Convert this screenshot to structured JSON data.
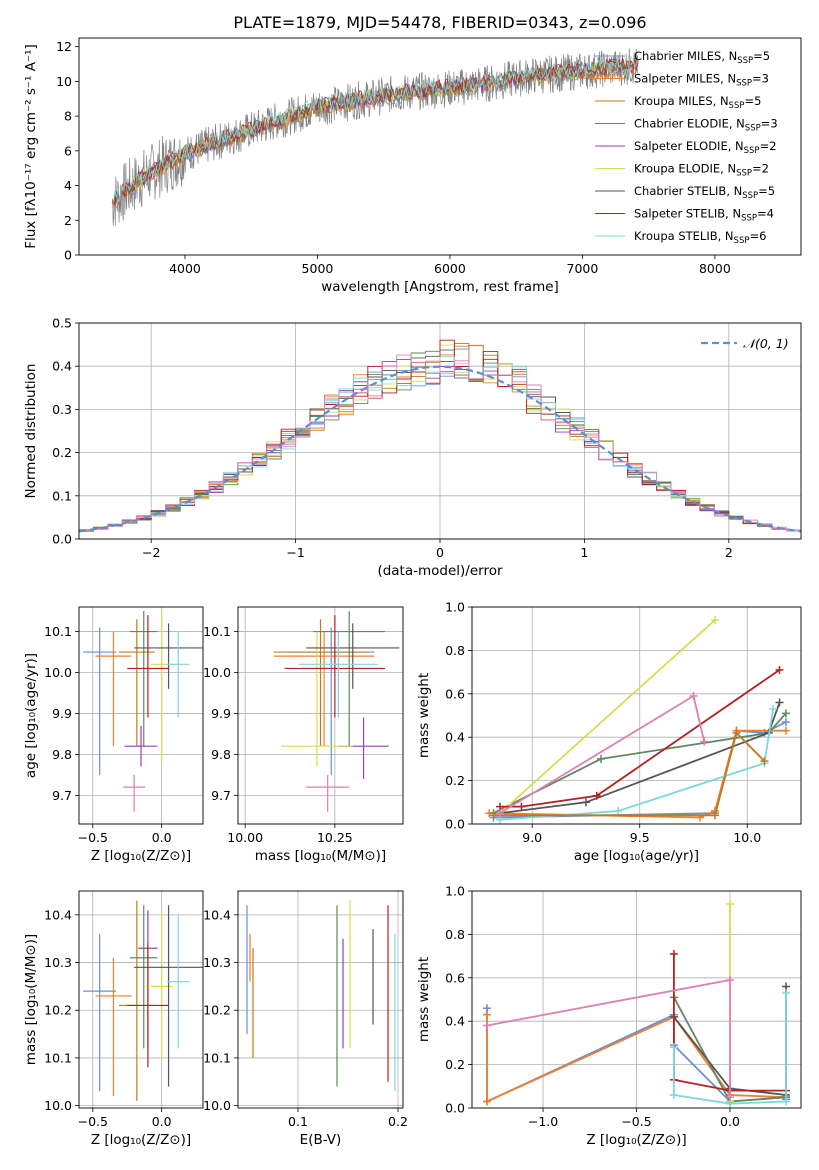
{
  "figure_title": "PLATE=1879, MJD=54478, FIBERID=0343, z=0.096",
  "colors": [
    "#6a8fd8",
    "#ee7f2d",
    "#c07a1f",
    "#5f8a5f",
    "#9b3fb5",
    "#d8dc52",
    "#555555",
    "#b22222",
    "#7fd7da"
  ],
  "chart_data": [
    {
      "id": "spectrum",
      "type": "line",
      "title": "PLATE=1879, MJD=54478, FIBERID=0343, z=0.096",
      "xlabel": "wavelength [Angstrom, rest frame]",
      "ylabel": "Flux [fλ10⁻¹⁷ erg cm⁻² s⁻¹ A⁻¹]",
      "xlim": [
        3200,
        8650
      ],
      "ylim": [
        0,
        12.5
      ],
      "xticks": [
        4000,
        5000,
        6000,
        7000,
        8000
      ],
      "yticks": [
        0,
        2,
        4,
        6,
        8,
        10,
        12
      ],
      "grid": false,
      "legend_position": "upper-right",
      "data_color": "#808080",
      "data_anchors": {
        "x": [
          3450,
          3600,
          3800,
          4000,
          4200,
          4500,
          4800,
          5000,
          5300,
          5600,
          6000,
          6300,
          6600,
          7000,
          7400
        ],
        "y": [
          3.0,
          4.0,
          5.0,
          5.8,
          6.4,
          7.2,
          8.0,
          8.5,
          8.9,
          9.3,
          9.6,
          9.9,
          10.3,
          10.6,
          10.9
        ]
      },
      "series": [
        {
          "name": "Chabrier MILES, N",
          "sub": "SSP",
          "suffix": "=5"
        },
        {
          "name": "Salpeter MILES, N",
          "sub": "SSP",
          "suffix": "=3"
        },
        {
          "name": "Kroupa MILES, N",
          "sub": "SSP",
          "suffix": "=5"
        },
        {
          "name": "Chabrier ELODIE, N",
          "sub": "SSP",
          "suffix": "=3"
        },
        {
          "name": "Salpeter ELODIE, N",
          "sub": "SSP",
          "suffix": "=2"
        },
        {
          "name": "Kroupa ELODIE, N",
          "sub": "SSP",
          "suffix": "=2"
        },
        {
          "name": "Chabrier STELIB, N",
          "sub": "SSP",
          "suffix": "=5"
        },
        {
          "name": "Salpeter STELIB, N",
          "sub": "SSP",
          "suffix": "=4"
        },
        {
          "name": "Kroupa STELIB, N",
          "sub": "SSP",
          "suffix": "=6"
        }
      ]
    },
    {
      "id": "residuals",
      "type": "line",
      "xlabel": "(data-model)/error",
      "ylabel": "Normed distribution",
      "xlim": [
        -2.5,
        2.5
      ],
      "ylim": [
        0,
        0.5
      ],
      "xticks": [
        -2,
        -1,
        0,
        1,
        2
      ],
      "xtick_labels": [
        "−2",
        "−1",
        "0",
        "1",
        "2"
      ],
      "yticks": [
        0.0,
        0.1,
        0.2,
        0.3,
        0.4,
        0.5
      ],
      "ytick_labels": [
        "0.0",
        "0.1",
        "0.2",
        "0.3",
        "0.4",
        "0.5"
      ],
      "grid": true,
      "legend_position": "upper-right",
      "gaussian_label": "𝒩(0, 1)",
      "gaussian_color": "#5a8fd0",
      "bin_width": 0.1
    },
    {
      "id": "age_vs_Z",
      "type": "scatter",
      "xlabel": "Z [log₁₀(Z/Z⊙)]",
      "ylabel": "age  [log₁₀(age/yr)]",
      "xlim": [
        -0.6,
        0.3
      ],
      "ylim": [
        9.63,
        10.16
      ],
      "xticks": [
        -0.5,
        0.0
      ],
      "xtick_labels": [
        "−0.5",
        "0.0"
      ],
      "yticks": [
        9.7,
        9.8,
        9.9,
        10.0,
        10.1
      ],
      "ytick_labels": [
        "9.7",
        "9.8",
        "9.9",
        "10.0",
        "10.1"
      ],
      "grid": true,
      "points": [
        {
          "x": -0.45,
          "y": 10.05,
          "xerr": 0.12,
          "yerr": [
            0.3,
            0.06
          ]
        },
        {
          "x": -0.35,
          "y": 10.04,
          "xerr": 0.13,
          "yerr": [
            0.22,
            0.06
          ]
        },
        {
          "x": -0.18,
          "y": 10.05,
          "xerr": 0.13,
          "yerr": [
            0.23,
            0.08
          ]
        },
        {
          "x": -0.13,
          "y": 10.1,
          "xerr": 0.1,
          "yerr": [
            0.28,
            0.05
          ]
        },
        {
          "x": -0.15,
          "y": 9.82,
          "xerr": 0.12,
          "yerr": [
            0.05,
            0.05
          ]
        },
        {
          "x": 0.0,
          "y": 10.02,
          "xerr": 0.08,
          "yerr": [
            0.24,
            0.13
          ]
        },
        {
          "x": 0.05,
          "y": 10.06,
          "xerr": 0.25,
          "yerr": [
            0.1,
            0.06
          ]
        },
        {
          "x": -0.1,
          "y": 10.01,
          "xerr": 0.15,
          "yerr": [
            0.12,
            0.13
          ]
        },
        {
          "x": 0.12,
          "y": 10.02,
          "xerr": 0.08,
          "yerr": [
            0.13,
            0.08
          ]
        },
        {
          "x": -0.2,
          "y": 9.72,
          "xerr": 0.08,
          "yerr": [
            0.06,
            0.03
          ]
        }
      ]
    },
    {
      "id": "age_vs_mass",
      "type": "scatter",
      "xlabel": "mass [log₁₀(M/M⊙)]",
      "xlim": [
        9.98,
        10.44
      ],
      "ylim": [
        9.63,
        10.16
      ],
      "xticks": [
        10.0,
        10.25
      ],
      "xtick_labels": [
        "10.00",
        "10.25"
      ],
      "yticks": [
        9.7,
        9.8,
        9.9,
        10.0,
        10.1
      ],
      "ytick_labels": [
        "9.7",
        "9.8",
        "9.9",
        "10.0",
        "10.1"
      ],
      "grid": true,
      "points": [
        {
          "x": 10.24,
          "y": 10.05,
          "xerr": 0.12,
          "yerr": [
            0.3,
            0.06
          ]
        },
        {
          "x": 10.22,
          "y": 10.04,
          "xerr": 0.14,
          "yerr": [
            0.22,
            0.06
          ]
        },
        {
          "x": 10.21,
          "y": 10.05,
          "xerr": 0.13,
          "yerr": [
            0.23,
            0.08
          ]
        },
        {
          "x": 10.29,
          "y": 10.1,
          "xerr": 0.1,
          "yerr": [
            0.28,
            0.05
          ]
        },
        {
          "x": 10.33,
          "y": 9.82,
          "xerr": 0.07,
          "yerr": [
            0.08,
            0.07
          ]
        },
        {
          "x": 10.2,
          "y": 9.82,
          "xerr": 0.1,
          "yerr": [
            0.05,
            0.28
          ]
        },
        {
          "x": 10.3,
          "y": 10.06,
          "xerr": 0.13,
          "yerr": [
            0.1,
            0.06
          ]
        },
        {
          "x": 10.25,
          "y": 10.01,
          "xerr": 0.14,
          "yerr": [
            0.12,
            0.13
          ]
        },
        {
          "x": 10.26,
          "y": 10.02,
          "xerr": 0.11,
          "yerr": [
            0.13,
            0.08
          ]
        },
        {
          "x": 10.23,
          "y": 9.72,
          "xerr": 0.06,
          "yerr": [
            0.06,
            0.03
          ]
        }
      ]
    },
    {
      "id": "weight_vs_age",
      "type": "line",
      "xlabel": "age  [log₁₀(age/yr)]",
      "ylabel": "mass weight",
      "xlim": [
        8.72,
        10.25
      ],
      "ylim": [
        0,
        1
      ],
      "xticks": [
        9.0,
        9.5,
        10.0
      ],
      "xtick_labels": [
        "9.0",
        "9.5",
        "10.0"
      ],
      "yticks": [
        0,
        0.2,
        0.4,
        0.6,
        0.8,
        1.0
      ],
      "ytick_labels": [
        "0.0",
        "0.2",
        "0.4",
        "0.6",
        "0.8",
        "1.0"
      ],
      "grid": true,
      "series": [
        {
          "color": 0,
          "x": [
            8.82,
            9.85,
            9.95,
            10.08,
            10.18
          ],
          "y": [
            0.03,
            0.05,
            0.43,
            0.42,
            0.47
          ]
        },
        {
          "color": 1,
          "x": [
            8.8,
            9.78,
            9.85,
            9.95,
            10.18
          ],
          "y": [
            0.05,
            0.03,
            0.06,
            0.43,
            0.43
          ]
        },
        {
          "color": 3,
          "x": [
            8.82,
            9.32,
            10.1,
            10.18
          ],
          "y": [
            0.05,
            0.3,
            0.42,
            0.51
          ]
        },
        {
          "color": 5,
          "x": [
            8.85,
            9.85
          ],
          "y": [
            0.05,
            0.94
          ]
        },
        {
          "color": 6,
          "x": [
            8.85,
            9.25,
            10.1,
            10.15
          ],
          "y": [
            0.05,
            0.1,
            0.42,
            0.56
          ]
        },
        {
          "color": 7,
          "x": [
            8.85,
            8.95,
            9.3,
            10.15
          ],
          "y": [
            0.08,
            0.08,
            0.13,
            0.71
          ]
        },
        {
          "color": 8,
          "x": [
            8.85,
            9.4,
            10.08,
            10.12
          ],
          "y": [
            0.02,
            0.06,
            0.28,
            0.53
          ]
        },
        {
          "color": 2,
          "x": [
            8.82,
            9.85,
            9.95,
            10.08
          ],
          "y": [
            0.04,
            0.04,
            0.42,
            0.29
          ]
        },
        {
          "color": "#e07fb0",
          "x": [
            8.85,
            9.75,
            9.8
          ],
          "y": [
            0.05,
            0.59,
            0.38
          ]
        }
      ]
    },
    {
      "id": "mass_vs_Z",
      "type": "scatter",
      "xlabel": "Z [log₁₀(Z/Z⊙)]",
      "ylabel": "mass [log₁₀(M/M⊙)]",
      "xlim": [
        -0.6,
        0.3
      ],
      "ylim": [
        9.995,
        10.45
      ],
      "xticks": [
        -0.5,
        0.0
      ],
      "xtick_labels": [
        "−0.5",
        "0.0"
      ],
      "yticks": [
        10.0,
        10.1,
        10.2,
        10.3,
        10.4
      ],
      "ytick_labels": [
        "10.0",
        "10.1",
        "10.2",
        "10.3",
        "10.4"
      ],
      "grid": true,
      "points": [
        {
          "x": -0.45,
          "y": 10.24,
          "xerr": 0.12,
          "yerr": [
            0.21,
            0.12
          ]
        },
        {
          "x": -0.35,
          "y": 10.23,
          "xerr": 0.13,
          "yerr": [
            0.21,
            0.08
          ]
        },
        {
          "x": -0.18,
          "y": 10.21,
          "xerr": 0.13,
          "yerr": [
            0.2,
            0.22
          ]
        },
        {
          "x": -0.13,
          "y": 10.31,
          "xerr": 0.1,
          "yerr": [
            0.19,
            0.11
          ]
        },
        {
          "x": -0.1,
          "y": 10.33,
          "xerr": 0.07,
          "yerr": [
            0.21,
            0.08
          ]
        },
        {
          "x": 0.0,
          "y": 10.25,
          "xerr": 0.08,
          "yerr": [
            0.15,
            0.16
          ]
        },
        {
          "x": 0.05,
          "y": 10.29,
          "xerr": 0.25,
          "yerr": [
            0.25,
            0.13
          ]
        },
        {
          "x": -0.1,
          "y": 10.21,
          "xerr": 0.15,
          "yerr": [
            0.13,
            0.13
          ]
        },
        {
          "x": 0.12,
          "y": 10.26,
          "xerr": 0.08,
          "yerr": [
            0.14,
            0.14
          ]
        }
      ]
    },
    {
      "id": "mass_vs_EBV",
      "type": "scatter",
      "xlabel": "E(B-V)",
      "xlim": [
        0.04,
        0.205
      ],
      "ylim": [
        9.995,
        10.45
      ],
      "xticks": [
        0.1,
        0.2
      ],
      "xtick_labels": [
        "0.1",
        "0.2"
      ],
      "yticks": [
        10.0,
        10.1,
        10.2,
        10.3,
        10.4
      ],
      "ytick_labels": [
        "10.0",
        "10.1",
        "10.2",
        "10.3",
        "10.4"
      ],
      "grid": true,
      "points": [
        {
          "x": 0.049,
          "y": 10.27,
          "yerr": [
            0.12,
            0.15
          ]
        },
        {
          "x": 0.052,
          "y": 10.28,
          "yerr": [
            0.02,
            0.08
          ]
        },
        {
          "x": 0.055,
          "y": 10.25,
          "yerr": [
            0.15,
            0.08
          ]
        },
        {
          "x": 0.139,
          "y": 10.25,
          "yerr": [
            0.21,
            0.17
          ]
        },
        {
          "x": 0.145,
          "y": 10.25,
          "yerr": [
            0.13,
            0.1
          ]
        },
        {
          "x": 0.152,
          "y": 10.27,
          "yerr": [
            0.15,
            0.16
          ]
        },
        {
          "x": 0.175,
          "y": 10.27,
          "yerr": [
            0.1,
            0.1
          ]
        },
        {
          "x": 0.19,
          "y": 10.3,
          "yerr": [
            0.25,
            0.12
          ]
        },
        {
          "x": 0.197,
          "y": 10.2,
          "yerr": [
            0.17,
            0.16
          ]
        }
      ]
    },
    {
      "id": "weight_vs_Z",
      "type": "line",
      "xlabel": "Z [log₁₀(Z/Z⊙)]",
      "ylabel": "mass weight",
      "xlim": [
        -1.38,
        0.38
      ],
      "ylim": [
        0,
        1
      ],
      "xticks": [
        -1.0,
        -0.5,
        0.0
      ],
      "xtick_labels": [
        "−1.0",
        "−0.5",
        "0.0"
      ],
      "yticks": [
        0,
        0.2,
        0.4,
        0.6,
        0.8,
        1.0
      ],
      "ytick_labels": [
        "0.0",
        "0.2",
        "0.4",
        "0.6",
        "0.8",
        "1.0"
      ],
      "grid": true,
      "series": [
        {
          "color": 0,
          "x": [
            -1.3,
            -1.3,
            -0.3,
            -0.3,
            0.0,
            0.3,
            0.3
          ],
          "y": [
            0.46,
            0.03,
            0.43,
            0.29,
            0.03,
            0.05,
            0.04
          ]
        },
        {
          "color": 1,
          "x": [
            -1.3,
            -1.3,
            -0.3,
            0.0,
            0.3
          ],
          "y": [
            0.43,
            0.03,
            0.42,
            0.06,
            0.05
          ]
        },
        {
          "color": 3,
          "x": [
            -0.3,
            0.0,
            0.3
          ],
          "y": [
            0.51,
            0.03,
            0.05
          ]
        },
        {
          "color": 5,
          "x": [
            0.0,
            0.0
          ],
          "y": [
            0.94,
            0.03
          ]
        },
        {
          "color": 6,
          "x": [
            -0.3,
            0.0,
            0.3,
            0.3
          ],
          "y": [
            0.42,
            0.09,
            0.06,
            0.56
          ]
        },
        {
          "color": 7,
          "x": [
            -0.3,
            -0.3,
            0.0,
            0.3
          ],
          "y": [
            0.71,
            0.13,
            0.08,
            0.08
          ]
        },
        {
          "color": 8,
          "x": [
            -0.3,
            -0.3,
            0.0,
            0.3,
            0.3
          ],
          "y": [
            0.28,
            0.06,
            0.02,
            0.03,
            0.53
          ]
        },
        {
          "color": "#e07fb0",
          "x": [
            -1.3,
            0.0,
            0.0
          ],
          "y": [
            0.38,
            0.59,
            0.05
          ]
        }
      ]
    }
  ]
}
